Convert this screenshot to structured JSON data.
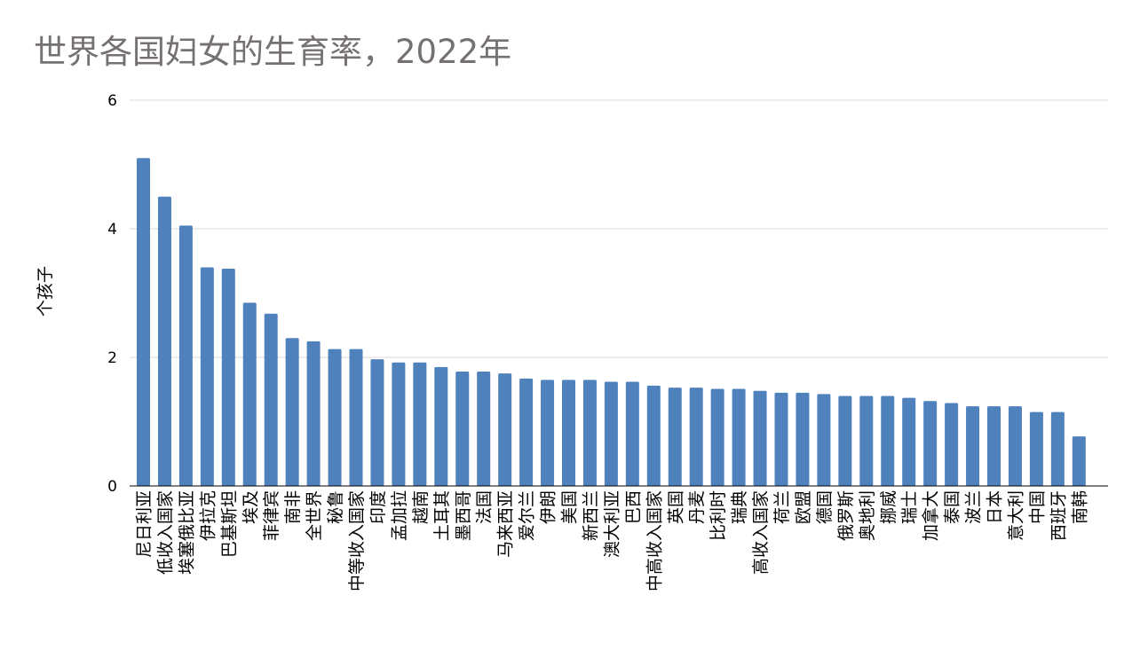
{
  "chart_data": {
    "type": "bar",
    "title": "世界各国妇女的生育率，2022年",
    "ylabel": "个孩子",
    "xlabel": "",
    "ylim": [
      0,
      6
    ],
    "yticks": [
      0,
      2,
      4,
      6
    ],
    "grid": true,
    "legend": "none",
    "bar_color": "#4f81bd",
    "categories": [
      "尼日利亚",
      "低收入国家",
      "埃塞俄比亚",
      "伊拉克",
      "巴基斯坦",
      "埃及",
      "菲律宾",
      "南非",
      "全世界",
      "秘鲁",
      "中等收入国家",
      "印度",
      "孟加拉",
      "越南",
      "土耳其",
      "墨西哥",
      "法国",
      "马来西亚",
      "爱尔兰",
      "伊朗",
      "美国",
      "新西兰",
      "澳大利亚",
      "巴西",
      "中高收入国家",
      "英国",
      "丹麦",
      "比利时",
      "瑞典",
      "高收入国家",
      "荷兰",
      "欧盟",
      "德国",
      "俄罗斯",
      "奥地利",
      "挪威",
      "瑞士",
      "加拿大",
      "泰国",
      "波兰",
      "日本",
      "意大利",
      "中国",
      "西班牙",
      "南韩"
    ],
    "values": [
      5.1,
      4.5,
      4.05,
      3.4,
      3.38,
      2.85,
      2.68,
      2.3,
      2.25,
      2.13,
      2.13,
      1.97,
      1.92,
      1.92,
      1.85,
      1.78,
      1.78,
      1.75,
      1.67,
      1.65,
      1.65,
      1.65,
      1.62,
      1.62,
      1.56,
      1.53,
      1.53,
      1.51,
      1.51,
      1.48,
      1.45,
      1.45,
      1.43,
      1.4,
      1.4,
      1.4,
      1.37,
      1.32,
      1.29,
      1.24,
      1.24,
      1.24,
      1.15,
      1.15,
      0.77
    ]
  }
}
